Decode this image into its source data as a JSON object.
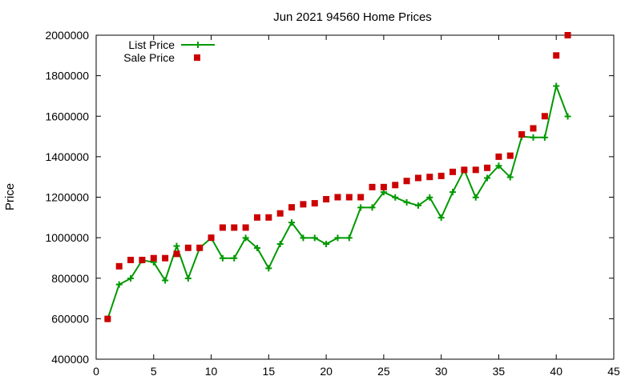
{
  "chart_data": {
    "type": "line",
    "title": "Jun 2021 94560 Home Prices",
    "xlabel": "",
    "ylabel": "Price",
    "xlim": [
      0,
      45
    ],
    "ylim": [
      400000,
      2000000
    ],
    "xticks": [
      "0",
      "5",
      "10",
      "15",
      "20",
      "25",
      "30",
      "35",
      "40",
      "45"
    ],
    "yticks": [
      "400000",
      "600000",
      "800000",
      "1000000",
      "1200000",
      "1400000",
      "1600000",
      "1800000",
      "2000000"
    ],
    "grid": false,
    "legend_position": "top-left",
    "series": [
      {
        "name": "List Price",
        "style": "line-plus",
        "color": "#009900",
        "x": [
          1,
          2,
          3,
          4,
          5,
          6,
          7,
          8,
          9,
          10,
          11,
          12,
          13,
          14,
          15,
          16,
          17,
          18,
          19,
          20,
          21,
          22,
          23,
          24,
          25,
          26,
          27,
          28,
          29,
          30,
          31,
          32,
          33,
          34,
          35,
          36,
          37,
          38,
          39,
          40,
          41
        ],
        "y": [
          599000,
          769000,
          799000,
          889000,
          879000,
          789000,
          959000,
          799000,
          949000,
          999000,
          899000,
          899000,
          999000,
          949000,
          849000,
          969000,
          1075000,
          999000,
          999000,
          969000,
          999000,
          999000,
          1149000,
          1149000,
          1225000,
          1199000,
          1175000,
          1159000,
          1199000,
          1099000,
          1225000,
          1335000,
          1199000,
          1295000,
          1355000,
          1299000,
          1499000,
          1495000,
          1495000,
          1749000,
          1599000
        ]
      },
      {
        "name": "Sale Price",
        "style": "square",
        "color": "#cc0000",
        "x": [
          1,
          2,
          3,
          4,
          5,
          6,
          7,
          8,
          9,
          10,
          11,
          12,
          13,
          14,
          15,
          16,
          17,
          18,
          19,
          20,
          21,
          22,
          23,
          24,
          25,
          26,
          27,
          28,
          29,
          30,
          31,
          32,
          33,
          34,
          35,
          36,
          37,
          38,
          39,
          40,
          41
        ],
        "y": [
          599000,
          859000,
          890000,
          890000,
          899000,
          899000,
          920000,
          950000,
          950000,
          1000000,
          1050000,
          1050000,
          1050000,
          1100000,
          1100000,
          1120000,
          1150000,
          1165000,
          1170000,
          1190000,
          1200000,
          1200000,
          1200000,
          1250000,
          1250000,
          1260000,
          1280000,
          1295000,
          1300000,
          1305000,
          1325000,
          1335000,
          1335000,
          1345000,
          1400000,
          1405000,
          1510000,
          1540000,
          1600000,
          1900000,
          2000000
        ]
      }
    ]
  }
}
